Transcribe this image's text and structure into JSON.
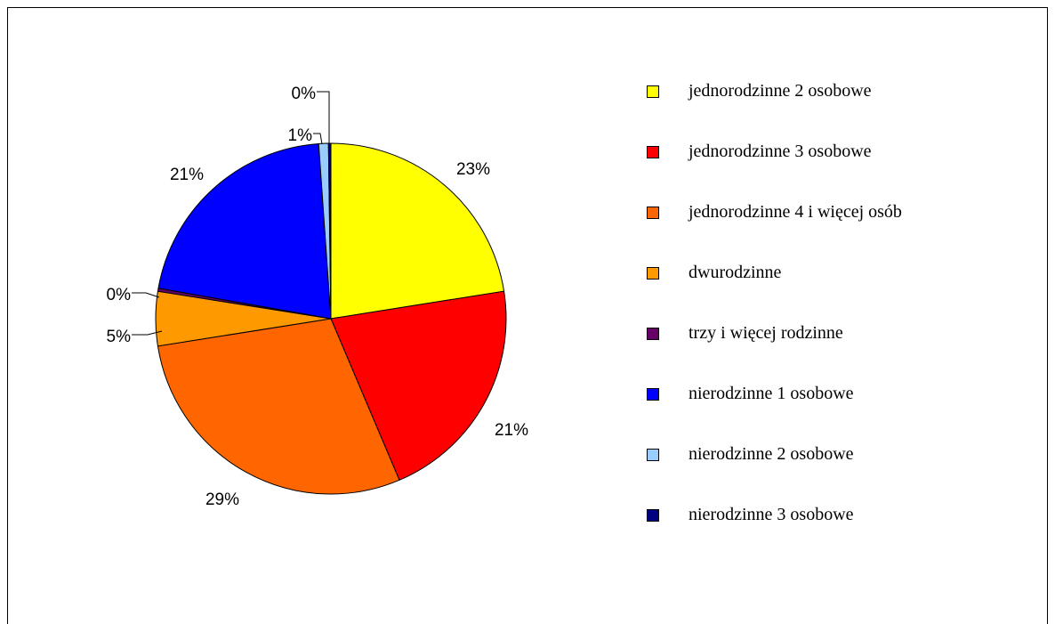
{
  "chart_data": {
    "type": "pie",
    "categories": [
      "jednorodzinne 2 osobowe",
      "jednorodzinne 3 osobowe",
      "jednorodzinne 4 i więcej osób",
      "dwurodzinne",
      "trzy i więcej rodzinne",
      "nierodzinne 1 osobowe",
      "nierodzinne 2 osobowe",
      "nierodzinne 3 osobowe"
    ],
    "values": [
      23,
      21,
      29,
      5,
      0,
      21,
      1,
      0
    ],
    "data_labels": [
      "23%",
      "21%",
      "29%",
      "5%",
      "0%",
      "21%",
      "1%",
      "0%"
    ],
    "colors": [
      "#FFFF00",
      "#FF0000",
      "#FF6600",
      "#FF9900",
      "#660066",
      "#0000FF",
      "#99CCFF",
      "#000080"
    ],
    "legend_position": "right"
  }
}
